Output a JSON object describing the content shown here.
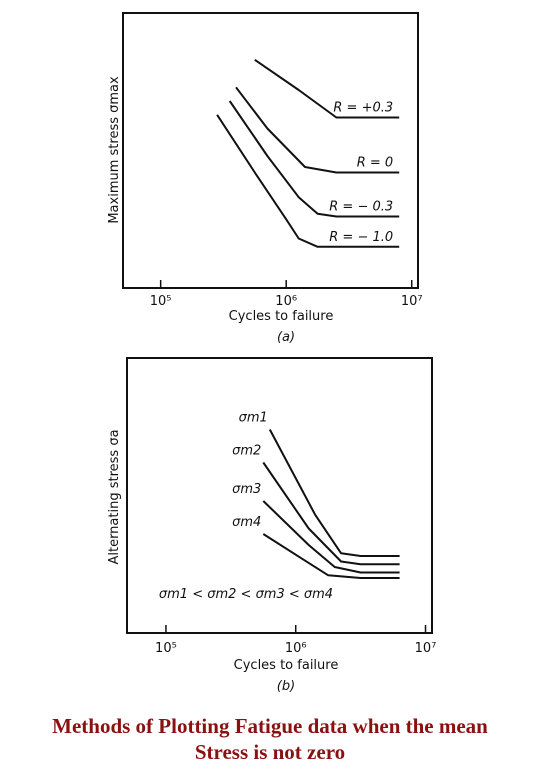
{
  "charts": [
    {
      "id": "a",
      "sublabel": "(a)",
      "xlabel": "Cycles to failure",
      "ylabel": "Maximum stress σmax",
      "xticks": [
        {
          "value": 5,
          "label": "10⁵"
        },
        {
          "value": 6,
          "label": "10⁶"
        },
        {
          "value": 7,
          "label": "10⁷"
        }
      ],
      "xlim": [
        4.7,
        7.05
      ],
      "ylim": [
        0,
        1
      ],
      "curve_labels": [
        "R = +0.3",
        "R = 0",
        "R = − 0.3",
        "R = − 1.0"
      ]
    },
    {
      "id": "b",
      "sublabel": "(b)",
      "xlabel": "Cycles to failure",
      "ylabel": "Alternating stress σa",
      "xticks": [
        {
          "value": 5,
          "label": "10⁵"
        },
        {
          "value": 6,
          "label": "10⁶"
        },
        {
          "value": 7,
          "label": "10⁷"
        }
      ],
      "xlim": [
        4.7,
        7.05
      ],
      "ylim": [
        0,
        1
      ],
      "curve_labels": [
        "σm1",
        "σm2",
        "σm3",
        "σm4"
      ],
      "annotation": "σm1 < σm2 < σm3 < σm4"
    }
  ],
  "chart_data": [
    {
      "type": "line",
      "xlabel": "Cycles to failure",
      "ylabel": "Maximum stress σmax",
      "x_scale": "log",
      "xlim": [
        4.7,
        7.05
      ],
      "grid": false,
      "series": [
        {
          "name": "R = +0.3",
          "x": [
            5.75,
            6.1,
            6.4,
            6.9
          ],
          "y": [
            0.83,
            0.72,
            0.62,
            0.62
          ]
        },
        {
          "name": "R = 0",
          "x": [
            5.6,
            5.85,
            6.15,
            6.4,
            6.9
          ],
          "y": [
            0.73,
            0.58,
            0.44,
            0.42,
            0.42
          ]
        },
        {
          "name": "R = − 0.3",
          "x": [
            5.55,
            5.85,
            6.1,
            6.25,
            6.4,
            6.9
          ],
          "y": [
            0.68,
            0.48,
            0.33,
            0.27,
            0.26,
            0.26
          ]
        },
        {
          "name": "R = − 1.0",
          "x": [
            5.45,
            5.75,
            6.0,
            6.1,
            6.25,
            6.9
          ],
          "y": [
            0.63,
            0.42,
            0.25,
            0.18,
            0.15,
            0.15
          ]
        }
      ]
    },
    {
      "type": "line",
      "xlabel": "Cycles to failure",
      "ylabel": "Alternating stress σa",
      "x_scale": "log",
      "xlim": [
        4.7,
        7.05
      ],
      "grid": false,
      "annotation": "σm1 < σm2 < σm3 < σm4",
      "series": [
        {
          "name": "σm1",
          "x": [
            5.8,
            6.15,
            6.35,
            6.5,
            6.8
          ],
          "y": [
            0.74,
            0.43,
            0.29,
            0.28,
            0.28
          ]
        },
        {
          "name": "σm2",
          "x": [
            5.75,
            6.1,
            6.35,
            6.5,
            6.8
          ],
          "y": [
            0.62,
            0.38,
            0.26,
            0.25,
            0.25
          ]
        },
        {
          "name": "σm3",
          "x": [
            5.75,
            6.1,
            6.3,
            6.5,
            6.8
          ],
          "y": [
            0.48,
            0.32,
            0.24,
            0.22,
            0.22
          ]
        },
        {
          "name": "σm4",
          "x": [
            5.75,
            6.05,
            6.25,
            6.5,
            6.8
          ],
          "y": [
            0.36,
            0.27,
            0.21,
            0.2,
            0.2
          ]
        }
      ]
    }
  ],
  "caption": {
    "line1": "Methods of Plotting Fatigue data when the mean",
    "line2": "Stress is not zero"
  }
}
